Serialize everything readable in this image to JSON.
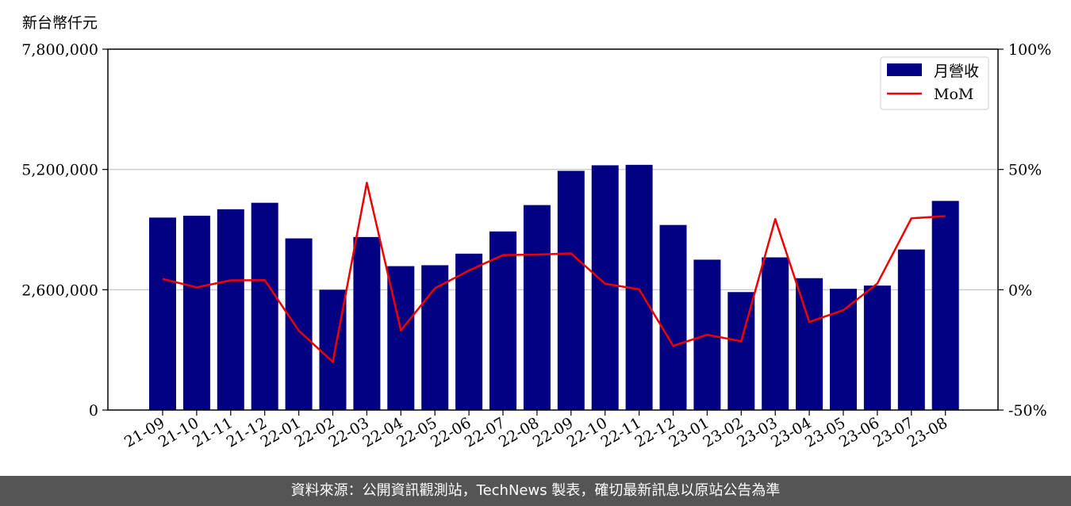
{
  "unit_label": "新台幣仟元",
  "footer_text": "資料來源：公開資訊觀測站，TechNews 製表，確切最新訊息以原站公告為準",
  "colors": {
    "bar": "#000080",
    "line": "#ee0000",
    "grid": "#cccccc",
    "footer_bg": "#555555"
  },
  "chart_data": {
    "type": "bar",
    "categories": [
      "21-09",
      "21-10",
      "21-11",
      "21-12",
      "22-01",
      "22-02",
      "22-03",
      "22-04",
      "22-05",
      "22-06",
      "22-07",
      "22-08",
      "22-09",
      "22-10",
      "22-11",
      "22-12",
      "23-01",
      "23-02",
      "23-03",
      "23-04",
      "23-05",
      "23-06",
      "23-07",
      "23-08"
    ],
    "series": [
      {
        "name": "月營收",
        "axis": "left",
        "type": "bar",
        "values": [
          4160000,
          4200000,
          4340000,
          4480000,
          3710000,
          2600000,
          3740000,
          3110000,
          3130000,
          3380000,
          3860000,
          4430000,
          5170000,
          5290000,
          5300000,
          4000000,
          3250000,
          2550000,
          3300000,
          2850000,
          2620000,
          2690000,
          3470000,
          4520000
        ]
      },
      {
        "name": "MoM",
        "axis": "right",
        "type": "line",
        "values": [
          4.5,
          1.0,
          3.9,
          4.0,
          -17.0,
          -30.0,
          44.5,
          -16.9,
          0.6,
          8.0,
          14.4,
          14.6,
          15.1,
          2.5,
          0.2,
          -23.3,
          -18.7,
          -21.4,
          29.4,
          -13.4,
          -8.5,
          2.6,
          29.7,
          30.6
        ]
      }
    ],
    "y_left": {
      "range": [
        0,
        7800000
      ],
      "ticks": [
        "0",
        "2,600,000",
        "5,200,000",
        "7,800,000"
      ],
      "tick_values": [
        0,
        2600000,
        5200000,
        7800000
      ]
    },
    "y_right": {
      "range": [
        -50,
        100
      ],
      "ticks": [
        "-50%",
        "0%",
        "50%",
        "100%"
      ],
      "tick_values": [
        -50,
        0,
        50,
        100
      ]
    },
    "grid": "horizontal",
    "legend_position": "top-right"
  }
}
